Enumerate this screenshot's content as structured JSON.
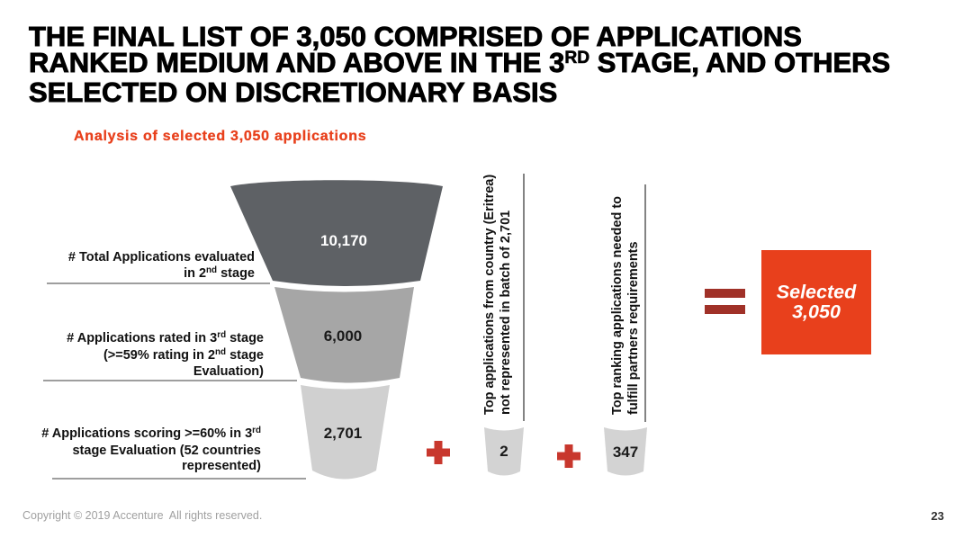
{
  "slide": {
    "title": {
      "line1": "THE FINAL LIST OF 3,050 COMPRISED OF APPLICATIONS",
      "line2_pre": "RANKED MEDIUM AND ABOVE IN THE 3",
      "line2_sup": "RD",
      "line2_post": " STAGE, AND OTHERS",
      "line3": "SELECTED ON DISCRETIONARY BASIS"
    },
    "subtitle": "Analysis of selected 3,050 applications",
    "footer": {
      "copyright": "Copyright © 2019 Accenture  All rights reserved.",
      "page_number": "23"
    }
  },
  "funnel": {
    "stages": [
      {
        "value": "10,170",
        "label": {
          "l1": "# Total Applications evaluated",
          "l2_pre": "in 2",
          "l2_sup": "nd",
          "l2_post": " stage"
        }
      },
      {
        "value": "6,000",
        "label": {
          "l1_pre": "# Applications rated in 3",
          "l1_sup": "rd",
          "l1_post": " stage",
          "l2_pre": "(>=59% rating in 2",
          "l2_sup": "nd",
          "l2_post": " stage",
          "l3": "Evaluation)"
        }
      },
      {
        "value": "2,701",
        "label": {
          "l1_pre": "# Applications scoring >=60% in 3",
          "l1_sup": "rd",
          "l2": "stage Evaluation (52 countries",
          "l3": "represented)"
        }
      }
    ]
  },
  "additions": [
    {
      "value": "2",
      "note_lines": [
        "Top applications from country (Eritrea)",
        "not represented in batch of 2,701"
      ]
    },
    {
      "value": "347",
      "note_lines": [
        "Top ranking applications needed to",
        "fulfill partners requirements"
      ]
    }
  ],
  "result": {
    "line1": "Selected",
    "line2": "3,050"
  },
  "icons": {
    "plus": "plus-icon",
    "equals": "equals-icon"
  },
  "colors": {
    "title_text": "#000000",
    "subtitle_text": "#E8401C",
    "funnel_top": "#5E6165",
    "funnel_middle": "#A6A6A6",
    "funnel_bottom": "#D0D0D0",
    "cup": "#D3D3D3",
    "plus": "#C8372D",
    "equals": "#A03128",
    "result_box": "#E8401C",
    "footer_text": "#A0A0A0"
  }
}
